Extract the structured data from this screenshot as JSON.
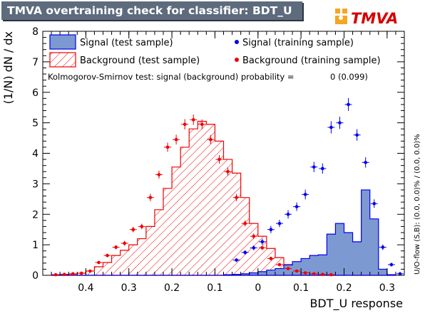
{
  "page_title": "TMVA overtraining check for classifier: BDT_U",
  "logo_text": "TMVA",
  "chart_data": {
    "type": "histogram",
    "xlabel": "BDT_U response",
    "ylabel": "(1/N) dN / dx",
    "xlim": [
      -0.5,
      0.34
    ],
    "ylim": [
      0,
      8
    ],
    "x_tick_labels": [
      "0.4",
      "0.3",
      "0.2",
      "0.1",
      "0",
      "0.1",
      "0.2",
      "0.3"
    ],
    "x_tick_values": [
      -0.4,
      -0.3,
      -0.2,
      -0.1,
      0.0,
      0.1,
      0.2,
      0.3
    ],
    "y_ticks": [
      0,
      1,
      2,
      3,
      4,
      5,
      6,
      7,
      8
    ],
    "bin_edges": [
      -0.48,
      -0.46,
      -0.44,
      -0.42,
      -0.4,
      -0.38,
      -0.36,
      -0.34,
      -0.32,
      -0.3,
      -0.28,
      -0.26,
      -0.24,
      -0.22,
      -0.2,
      -0.18,
      -0.16,
      -0.14,
      -0.12,
      -0.1,
      -0.08,
      -0.06,
      -0.04,
      -0.02,
      0.0,
      0.02,
      0.04,
      0.06,
      0.08,
      0.1,
      0.12,
      0.14,
      0.16,
      0.18,
      0.2,
      0.22,
      0.24,
      0.26,
      0.28,
      0.3,
      0.32
    ],
    "series": [
      {
        "name": "Signal (test sample)",
        "style": "filled",
        "fill": "#7d99d1",
        "stroke": "#0000ee",
        "values": [
          0.0,
          0.0,
          0.0,
          0.0,
          0.0,
          0.0,
          0.0,
          0.0,
          0.0,
          0.0,
          0.0,
          0.0,
          0.0,
          0.0,
          0.0,
          0.0,
          0.0,
          0.0,
          0.0,
          0.0,
          0.02,
          0.03,
          0.05,
          0.08,
          0.12,
          0.17,
          0.22,
          0.34,
          0.45,
          0.55,
          0.65,
          0.67,
          1.35,
          1.7,
          1.4,
          1.1,
          2.8,
          1.85,
          0.2,
          0.02
        ]
      },
      {
        "name": "Background (test sample)",
        "style": "hatched",
        "fill": "#ee0000",
        "stroke": "#ee0000",
        "values": [
          0.02,
          0.03,
          0.04,
          0.07,
          0.14,
          0.28,
          0.42,
          0.65,
          0.82,
          1.0,
          1.2,
          1.6,
          2.15,
          2.85,
          3.55,
          4.2,
          4.8,
          5.05,
          4.95,
          4.4,
          3.8,
          3.35,
          2.55,
          1.7,
          1.28,
          0.88,
          0.58,
          0.35,
          0.22,
          0.14,
          0.08,
          0.05,
          0.03,
          0.02,
          0.01,
          0.01,
          0.0,
          0.0,
          0.0,
          0.0
        ]
      },
      {
        "name": "Signal (training sample)",
        "style": "points",
        "color": "#0000ee",
        "x": [
          -0.05,
          -0.03,
          -0.01,
          0.01,
          0.03,
          0.05,
          0.07,
          0.09,
          0.11,
          0.13,
          0.15,
          0.17,
          0.19,
          0.21,
          0.23,
          0.25,
          0.27,
          0.29,
          0.31,
          0.33
        ],
        "values": [
          0.5,
          0.75,
          0.9,
          1.1,
          1.5,
          1.7,
          2.0,
          2.25,
          2.65,
          3.55,
          3.5,
          4.85,
          5.0,
          5.6,
          4.6,
          3.7,
          2.35,
          0.92,
          0.35,
          0.05
        ],
        "errors": [
          0.06,
          0.07,
          0.08,
          0.1,
          0.12,
          0.12,
          0.14,
          0.14,
          0.16,
          0.17,
          0.17,
          0.2,
          0.2,
          0.21,
          0.19,
          0.17,
          0.14,
          0.09,
          0.06,
          0.02
        ]
      },
      {
        "name": "Background (training sample)",
        "style": "points",
        "color": "#ee0000",
        "x": [
          -0.47,
          -0.45,
          -0.43,
          -0.41,
          -0.39,
          -0.37,
          -0.35,
          -0.33,
          -0.31,
          -0.29,
          -0.27,
          -0.25,
          -0.23,
          -0.21,
          -0.19,
          -0.17,
          -0.15,
          -0.13,
          -0.11,
          -0.09,
          -0.07,
          -0.05,
          -0.03,
          -0.01,
          0.01,
          0.03,
          0.05,
          0.07,
          0.09,
          0.11,
          0.13,
          0.15,
          0.17
        ],
        "values": [
          0.02,
          0.03,
          0.05,
          0.07,
          0.14,
          0.42,
          0.65,
          0.92,
          1.05,
          1.5,
          1.6,
          2.55,
          3.3,
          4.2,
          4.45,
          4.95,
          5.1,
          4.95,
          4.45,
          3.8,
          3.4,
          2.55,
          1.7,
          1.28,
          0.9,
          0.55,
          0.35,
          0.22,
          0.14,
          0.08,
          0.05,
          0.03,
          0.02
        ],
        "errors": [
          0.01,
          0.01,
          0.01,
          0.02,
          0.03,
          0.05,
          0.06,
          0.07,
          0.08,
          0.09,
          0.09,
          0.12,
          0.13,
          0.15,
          0.16,
          0.17,
          0.17,
          0.16,
          0.15,
          0.14,
          0.13,
          0.12,
          0.1,
          0.09,
          0.07,
          0.06,
          0.05,
          0.04,
          0.03,
          0.02,
          0.02,
          0.01,
          0.01
        ]
      }
    ],
    "legend": {
      "placement": "top",
      "entries": [
        "Signal (test sample)",
        "Background (test sample)",
        "Signal (training sample)",
        "Background (training sample)"
      ]
    },
    "ks_text": "Kolmogorov-Smirnov test: signal (background) probability =",
    "ks_value": "0 (0.099)",
    "overflow_text": "U/O-flow (S,B): (0.0, 0.0)% / (0.0, 0.0)%"
  }
}
